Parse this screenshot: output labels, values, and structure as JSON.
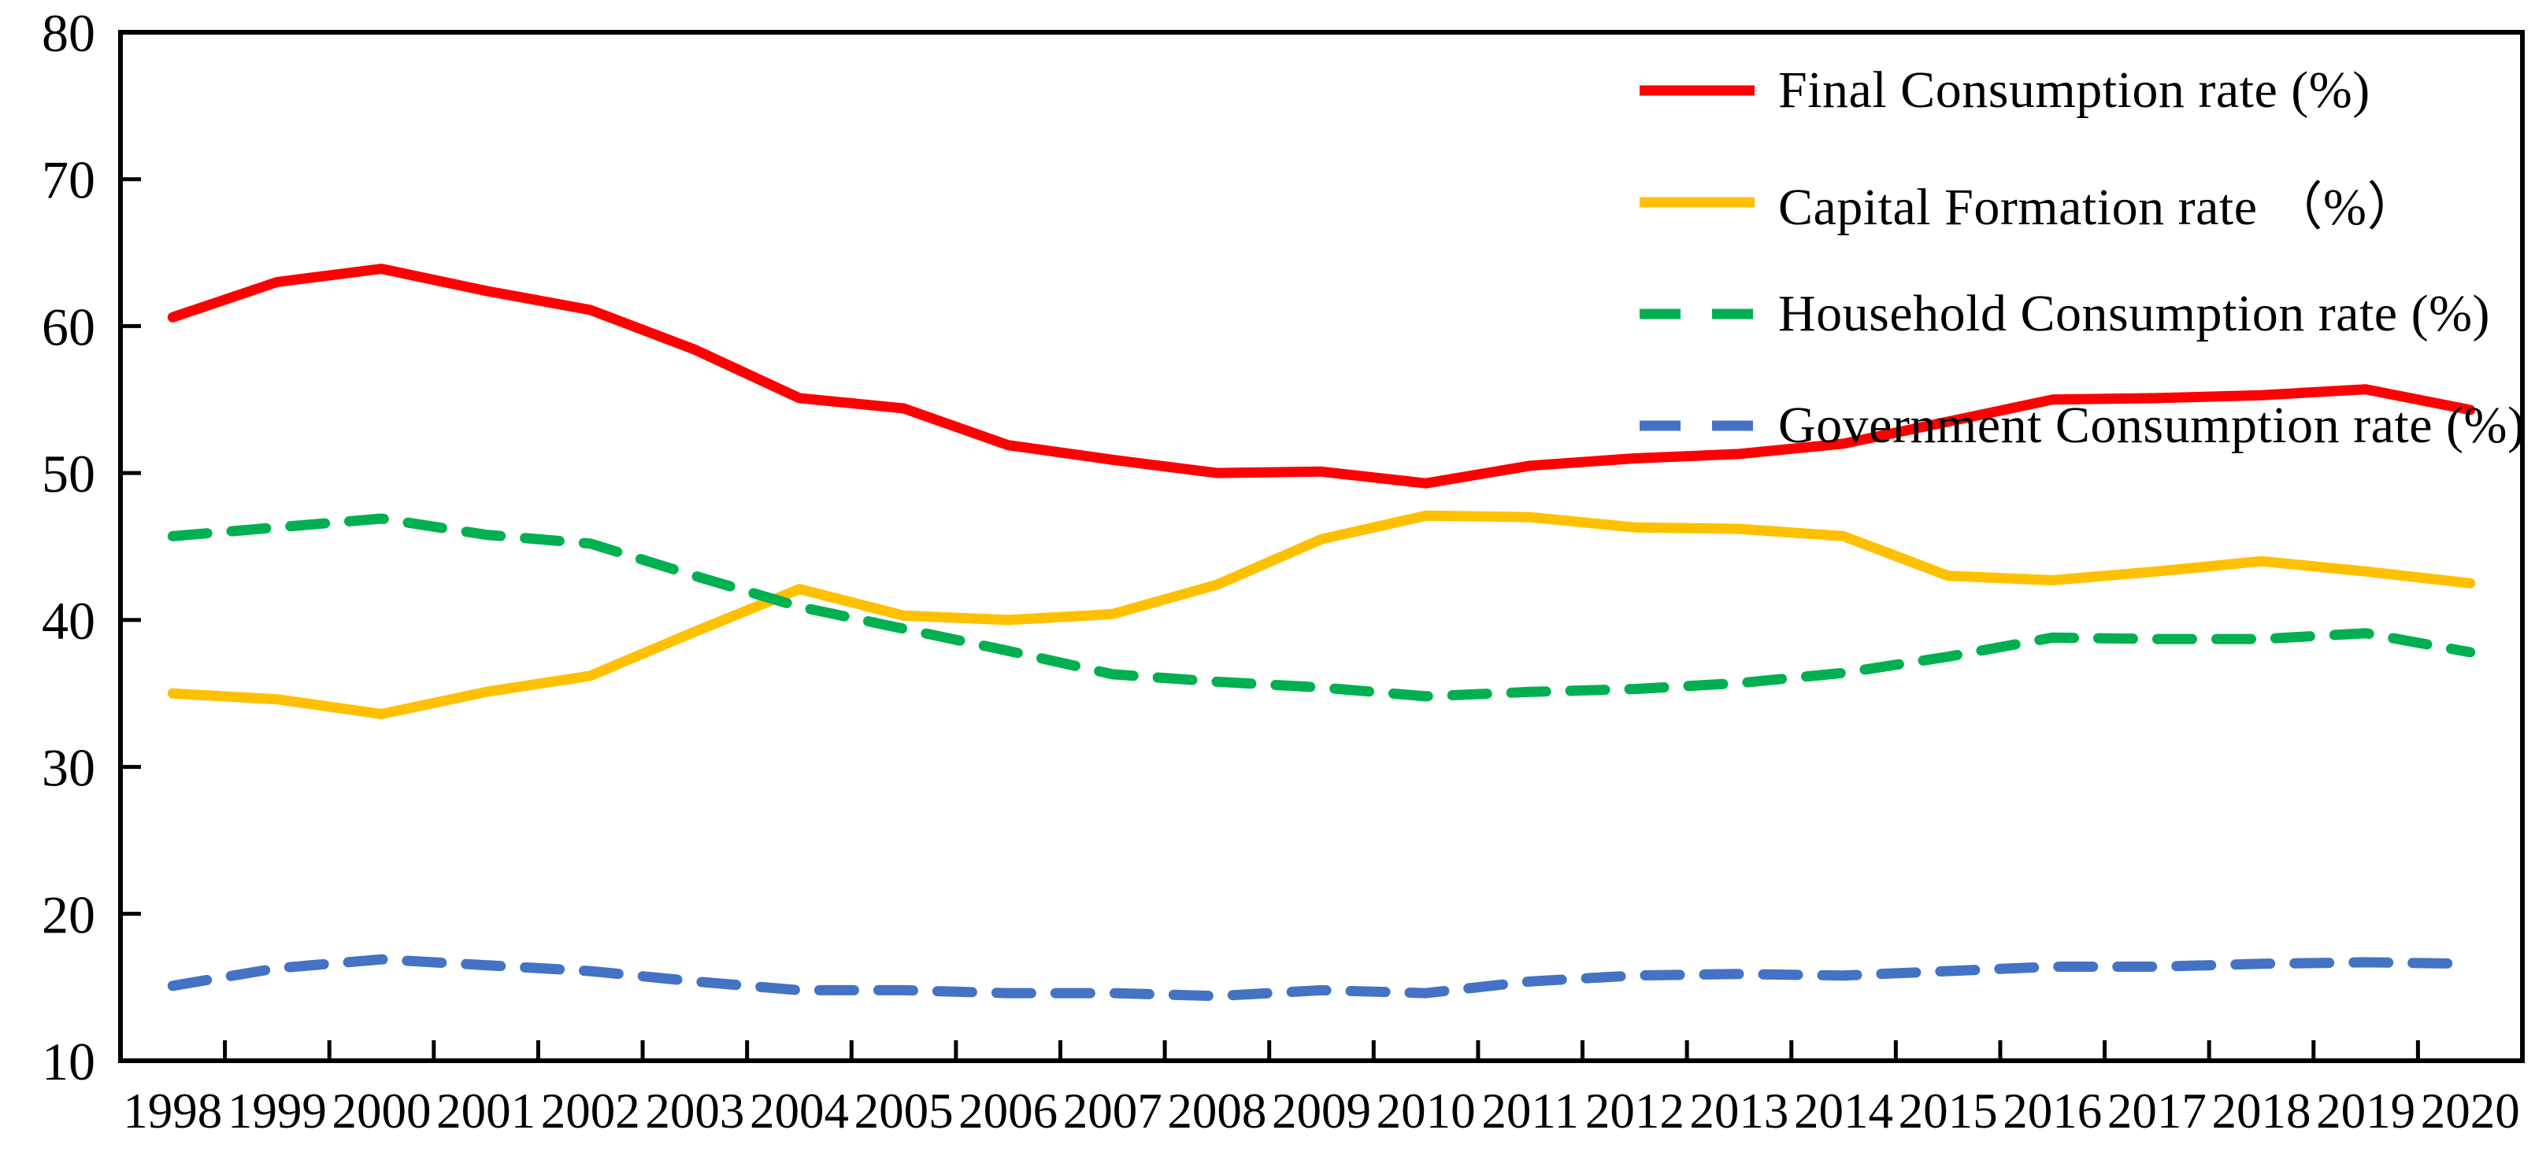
{
  "chart_data": {
    "type": "line",
    "title": "",
    "xlabel": "",
    "ylabel": "",
    "categories": [
      1998,
      1999,
      2000,
      2001,
      2002,
      2003,
      2004,
      2005,
      2006,
      2007,
      2008,
      2009,
      2010,
      2011,
      2012,
      2013,
      2014,
      2015,
      2016,
      2017,
      2018,
      2019,
      2020
    ],
    "series": [
      {
        "name": "Final Consumption  rate (%)",
        "color": "#ff0000",
        "style": "solid",
        "values": [
          60.6,
          63.0,
          63.9,
          62.4,
          61.1,
          58.4,
          55.1,
          54.4,
          51.9,
          50.9,
          50.0,
          50.1,
          49.3,
          50.5,
          51.0,
          51.3,
          52.0,
          53.5,
          55.0,
          55.1,
          55.3,
          55.7,
          54.3
        ]
      },
      {
        "name": "Capital Formation rate （%）",
        "color": "#ffc000",
        "style": "solid",
        "values": [
          35.0,
          34.6,
          33.6,
          35.1,
          36.2,
          39.2,
          42.1,
          40.3,
          40.0,
          40.4,
          42.4,
          45.5,
          47.1,
          47.0,
          46.3,
          46.2,
          45.7,
          43.0,
          42.7,
          43.3,
          44.0,
          43.3,
          42.5
        ]
      },
      {
        "name": "Household Consumption  rate (%)",
        "color": "#00b050",
        "style": "dashed",
        "values": [
          45.7,
          46.3,
          46.9,
          45.8,
          45.2,
          43.0,
          40.9,
          39.4,
          37.9,
          36.3,
          35.8,
          35.4,
          34.8,
          35.1,
          35.3,
          35.7,
          36.4,
          37.5,
          38.8,
          38.7,
          38.7,
          39.1,
          37.8
        ]
      },
      {
        "name": "Government Consumption rate (%)",
        "color": "#4472c4",
        "style": "dashed",
        "values": [
          15.1,
          16.3,
          16.9,
          16.5,
          16.1,
          15.4,
          14.8,
          14.8,
          14.6,
          14.6,
          14.4,
          14.8,
          14.6,
          15.4,
          15.8,
          15.9,
          15.8,
          16.1,
          16.4,
          16.4,
          16.6,
          16.7,
          16.6
        ]
      }
    ],
    "ylim": [
      10,
      80
    ],
    "yticks": [
      10,
      20,
      30,
      40,
      50,
      60,
      70,
      80
    ],
    "grid": false,
    "legend_position": "top-right",
    "axis_color": "#000000"
  }
}
